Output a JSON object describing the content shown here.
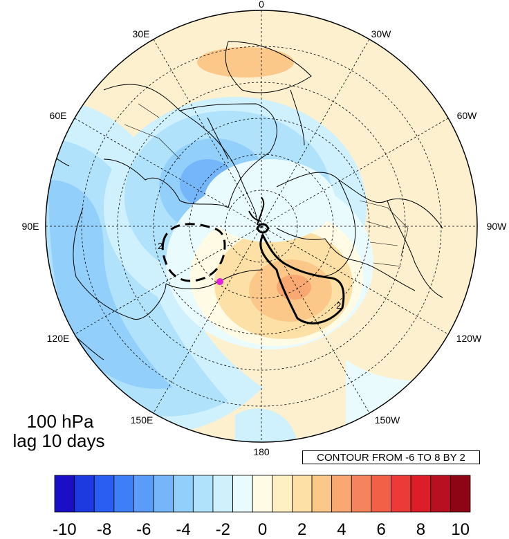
{
  "map": {
    "level": "100 hPa",
    "lag": "lag 10 days",
    "contour_info": "CONTOUR FROM -6 TO 8 BY 2",
    "contour_label": "2",
    "lon_labels": [
      "0",
      "30W",
      "60W",
      "90W",
      "120W",
      "150W",
      "180",
      "150E",
      "120E",
      "90E",
      "60E",
      "30E"
    ],
    "marker_color": "#e020e0"
  },
  "colorbar": {
    "ticks": [
      "-10",
      "-8",
      "-6",
      "-4",
      "-2",
      "0",
      "2",
      "4",
      "6",
      "8",
      "10"
    ],
    "colors": [
      "#1a0fc4",
      "#1c3ae0",
      "#2a5ef2",
      "#3e7ef6",
      "#5a9cf8",
      "#74b6f9",
      "#92cffb",
      "#b0e2fc",
      "#cff0fd",
      "#eafbfd",
      "#fffbe4",
      "#fff0c4",
      "#fde0a6",
      "#fbc88a",
      "#f8a870",
      "#f5845c",
      "#f26048",
      "#eb3a38",
      "#dc1e2a",
      "#b81020",
      "#8e0616"
    ]
  }
}
